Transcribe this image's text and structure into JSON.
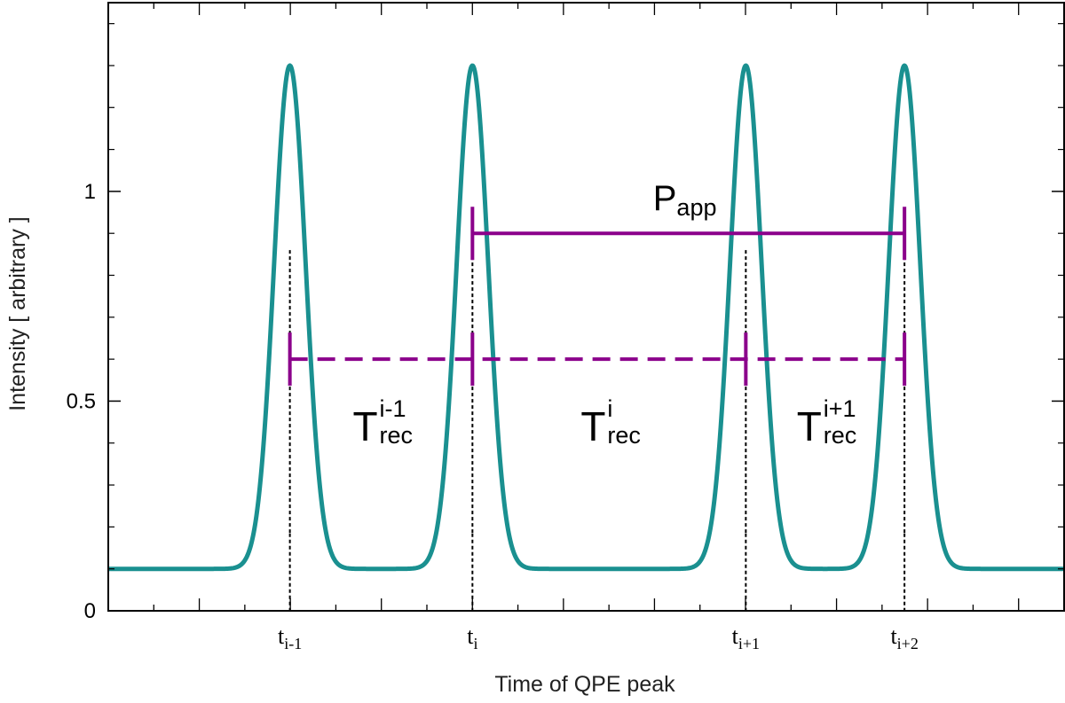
{
  "chart_data": {
    "type": "line",
    "xlabel": "Time of QPE peak",
    "ylabel": "Intensity [ arbitrary ]",
    "xlim": [
      0,
      1
    ],
    "ylim": [
      0,
      1.45
    ],
    "ytick_values": [
      0,
      0.5,
      1
    ],
    "ytick_labels": [
      "0",
      "0.5",
      "1"
    ],
    "grid": false,
    "baseline": 0.1,
    "peak_height": 1.3,
    "colors": {
      "curve": "#1a9090",
      "annotation": "#8b008b",
      "guide": "#000000"
    },
    "peaks": [
      {
        "x": 0.19,
        "label_base": "t",
        "label_sub": "i-1"
      },
      {
        "x": 0.381,
        "label_base": "t",
        "label_sub": "i"
      },
      {
        "x": 0.667,
        "label_base": "t",
        "label_sub": "i+1"
      },
      {
        "x": 0.833,
        "label_base": "t",
        "label_sub": "i+2"
      }
    ],
    "annotations": {
      "period": {
        "y": 0.9,
        "from_peak": 1,
        "to_peak": 3,
        "label_base": "P",
        "label_sub": "app",
        "style": "solid"
      },
      "recurrence": {
        "y": 0.6,
        "style": "dashed"
      },
      "intervals": [
        {
          "label_base": "T",
          "label_sup": "i-1",
          "label_sub": "rec"
        },
        {
          "label_base": "T",
          "label_sup": "i",
          "label_sub": "rec"
        },
        {
          "label_base": "T",
          "label_sup": "i+1",
          "label_sub": "rec"
        }
      ]
    }
  }
}
